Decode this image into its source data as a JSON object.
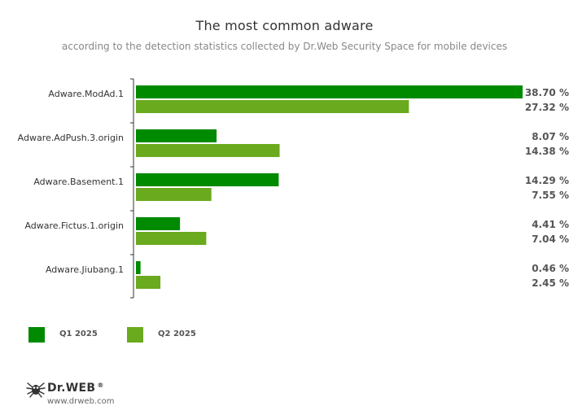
{
  "chart_data": {
    "type": "bar",
    "orientation": "horizontal",
    "title": "The most common adware",
    "subtitle": "according to the detection statistics collected by Dr.Web Security Space for mobile devices",
    "categories": [
      "Adware.ModAd.1",
      "Adware.AdPush.3.origin",
      "Adware.Basement.1",
      "Adware.Fictus.1.origin",
      "Adware.Jiubang.1"
    ],
    "series": [
      {
        "name": "Q1 2025",
        "color": "#008a00",
        "values": [
          38.7,
          8.07,
          14.29,
          4.41,
          0.46
        ]
      },
      {
        "name": "Q2 2025",
        "color": "#6aaa1e",
        "values": [
          27.32,
          14.38,
          7.55,
          7.04,
          2.45
        ]
      }
    ],
    "value_labels": [
      [
        "38.70 %",
        "8.07 %",
        "14.29 %",
        "4.41 %",
        "0.46 %"
      ],
      [
        "27.32 %",
        "14.38 %",
        "7.55 %",
        "7.04 %",
        "2.45 %"
      ]
    ],
    "xlim": [
      0,
      38.7
    ],
    "grid": false,
    "legend_position": "bottom-left"
  },
  "branding": {
    "logo_text": "Dr.WEB",
    "logo_mark": "®",
    "url": "www.drweb.com",
    "logo_icon": "spider-icon"
  }
}
